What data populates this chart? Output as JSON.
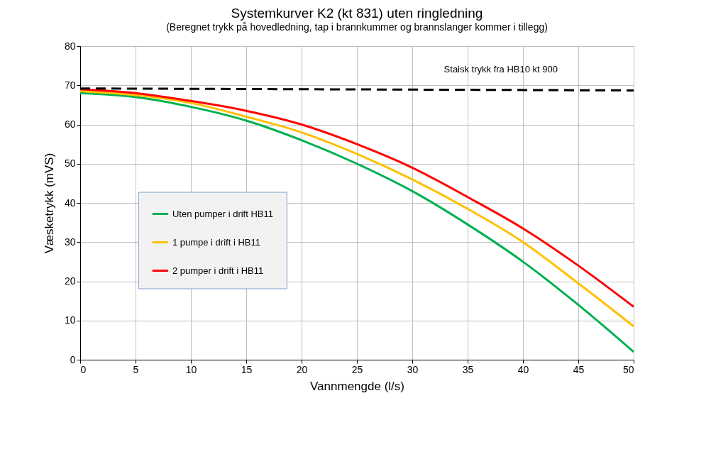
{
  "chart_data": {
    "type": "line",
    "title": "Systemkurver K2 (kt 831) uten ringledning",
    "subtitle": "(Beregnet trykk på hovedledning, tap i brannkummer og brannslanger kommer i tillegg)",
    "xlabel": "Vannmengde (l/s)",
    "ylabel": "Væsketrykk (mVS)",
    "x": [
      0,
      5,
      10,
      15,
      20,
      25,
      30,
      35,
      40,
      45,
      50
    ],
    "series": [
      {
        "name": "Uten pumper i drift HB11",
        "color": "#00b050",
        "values": [
          68,
          67,
          64.5,
          61,
          56,
          50,
          43,
          34.5,
          25,
          14,
          2
        ]
      },
      {
        "name": "1 pumpe i drift i HB11",
        "color": "#ffc000",
        "values": [
          68.5,
          67.5,
          65.5,
          62,
          58,
          52.5,
          46,
          38.5,
          30,
          19.5,
          8.5
        ]
      },
      {
        "name": "2 pumper i drift i HB11",
        "color": "#ff0000",
        "values": [
          69,
          68,
          66,
          63.5,
          60,
          55,
          49,
          41.5,
          33.5,
          24,
          13.5
        ]
      },
      {
        "color": "#000000",
        "line_style": "dashed",
        "x": [
          0,
          50
        ],
        "values": [
          69.2,
          68.7
        ]
      }
    ],
    "annotations": [
      {
        "text": "Staisk trykk fra HB10 kt 900",
        "x": 38,
        "y": 69
      }
    ],
    "xlim": [
      0,
      50
    ],
    "ylim": [
      0,
      80
    ],
    "xticks": [
      0,
      5,
      10,
      15,
      20,
      25,
      30,
      35,
      40,
      45,
      50
    ],
    "yticks": [
      0,
      10,
      20,
      30,
      40,
      50,
      60,
      70,
      80
    ],
    "grid": true,
    "legend": "left",
    "line_style": "solid",
    "marker": "none"
  }
}
